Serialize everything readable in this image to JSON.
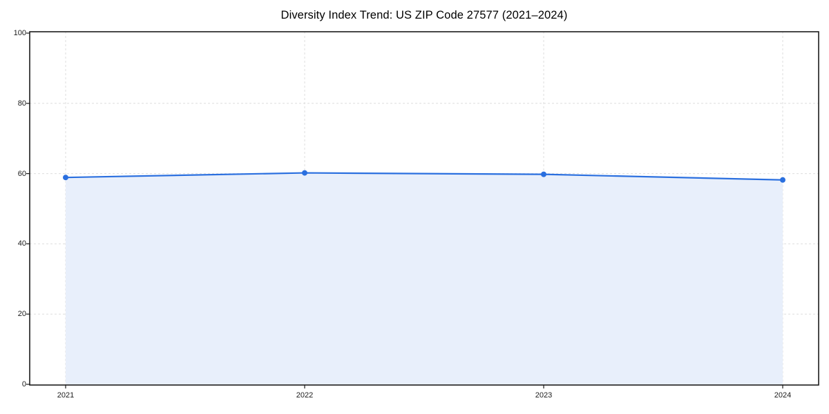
{
  "chart_data": {
    "type": "area",
    "title": "Diversity Index Trend: US ZIP Code 27577 (2021–2024)",
    "x": [
      2021,
      2022,
      2023,
      2024
    ],
    "x_tick_labels": [
      "2021",
      "2022",
      "2023",
      "2024"
    ],
    "series": [
      {
        "name": "Diversity Index",
        "values": [
          58.9,
          60.2,
          59.8,
          58.2
        ]
      }
    ],
    "xlabel": "",
    "ylabel": "",
    "ylim": [
      0,
      100
    ],
    "yticks": [
      0,
      20,
      40,
      60,
      80,
      100
    ],
    "y_tick_labels": [
      "0",
      "20",
      "40",
      "60",
      "80",
      "100"
    ],
    "grid": true,
    "grid_style": "dashed",
    "legend": "none",
    "marker": "circle",
    "colors": {
      "line": "#2a6fdf",
      "fill": "#e8effb",
      "grid": "#dedede",
      "spine": "#1a1a1a",
      "text": "#1a1a1a",
      "background": "#ffffff"
    }
  }
}
